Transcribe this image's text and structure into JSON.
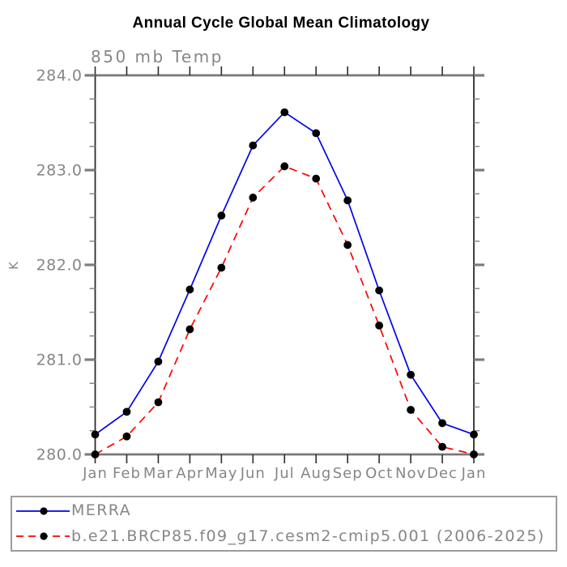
{
  "page": {
    "background_color": "#ffffff"
  },
  "colors": {
    "title_text": "#000000",
    "axis_text": "#868686",
    "frame_horizontal": "#787878",
    "frame_vertical": "#2b2b2b",
    "tick_major": "#7d7d7d",
    "tick_minor": "#8a8a8a",
    "marker": "#000000",
    "legend_border": "#9c9c9c",
    "series_blue": "#0000ee",
    "series_red": "#ff0000"
  },
  "chart_data": {
    "type": "line",
    "title": "Annual Cycle Global Mean Climatology",
    "subtitle": "850 mb Temp",
    "xlabel": "",
    "ylabel": "K",
    "grid": false,
    "legend_position": "bottom-left-box",
    "x_categories": [
      "Jan",
      "Feb",
      "Mar",
      "Apr",
      "May",
      "Jun",
      "Jul",
      "Aug",
      "Sep",
      "Oct",
      "Nov",
      "Dec",
      "Jan"
    ],
    "ylim": [
      280.0,
      284.0
    ],
    "ytick_major_labels": [
      "284.0",
      "283.0",
      "282.0",
      "281.0",
      "280.0"
    ],
    "ytick_major_values": [
      284.0,
      283.0,
      282.0,
      281.0,
      280.0
    ],
    "ytick_minor_step": 0.25,
    "series": [
      {
        "name": "MERRA",
        "color": "#0000ee",
        "line_style": "solid",
        "marker": "filled-circle",
        "marker_color": "#000000",
        "values": [
          280.21,
          280.45,
          280.98,
          281.74,
          282.52,
          283.26,
          283.61,
          283.39,
          282.68,
          281.73,
          280.84,
          280.33,
          280.21
        ]
      },
      {
        "name": "b.e21.BRCP85.f09_g17.cesm2-cmip5.001 (2006-2025)",
        "color": "#ff0000",
        "line_style": "dashed",
        "marker": "filled-circle",
        "marker_color": "#000000",
        "values": [
          280.0,
          280.19,
          280.55,
          281.32,
          281.97,
          282.71,
          283.04,
          282.91,
          282.21,
          281.36,
          280.47,
          280.08,
          280.0
        ]
      }
    ]
  }
}
